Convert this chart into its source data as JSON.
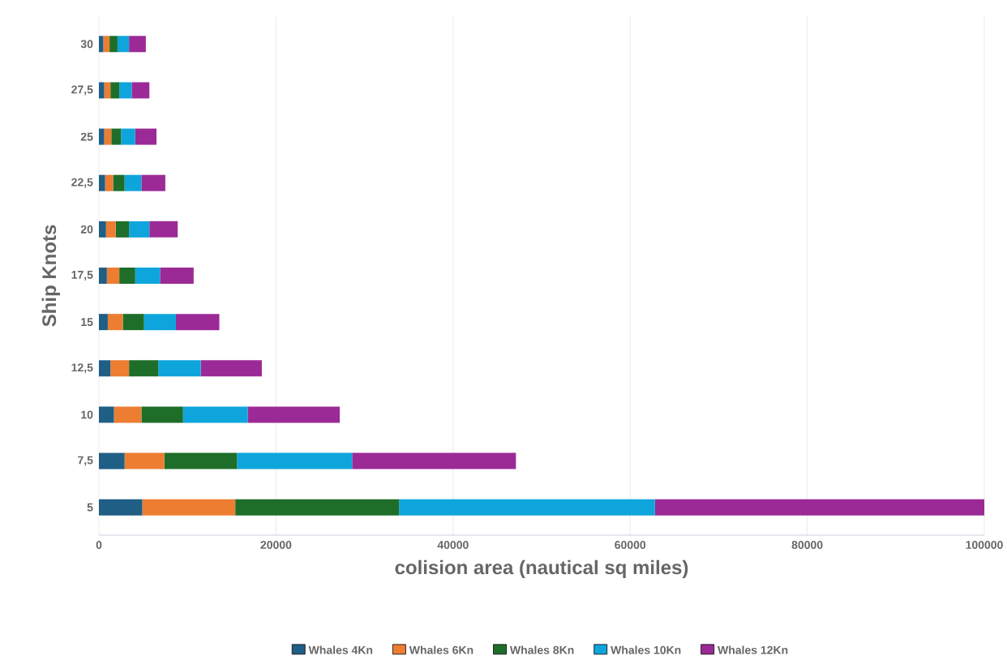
{
  "chart_data": {
    "type": "bar",
    "orientation": "horizontal",
    "stacked": true,
    "xlabel": "colision area (nautical sq miles)",
    "ylabel": "Ship Knots",
    "categories": [
      "30",
      "27,5",
      "25",
      "22,5",
      "20",
      "17,5",
      "15",
      "12,5",
      "10",
      "7,5",
      "5"
    ],
    "series": [
      {
        "name": "Whales 4Kn",
        "color": "#1f5f86",
        "values": [
          500,
          600,
          600,
          700,
          800,
          900,
          1000,
          1300,
          1700,
          2900,
          4900
        ]
      },
      {
        "name": "Whales 6Kn",
        "color": "#ed7d31",
        "values": [
          700,
          700,
          800,
          900,
          1100,
          1400,
          1700,
          2100,
          3100,
          4500,
          10500
        ]
      },
      {
        "name": "Whales 8Kn",
        "color": "#1e6e2a",
        "values": [
          900,
          1000,
          1100,
          1300,
          1500,
          1800,
          2400,
          3300,
          4700,
          8200,
          18500
        ]
      },
      {
        "name": "Whales 10Kn",
        "color": "#0ea5dc",
        "values": [
          1300,
          1400,
          1600,
          1900,
          2300,
          2800,
          3600,
          4800,
          7300,
          13000,
          28900
        ]
      },
      {
        "name": "Whales 12Kn",
        "color": "#9b2a96",
        "values": [
          1900,
          2000,
          2400,
          2700,
          3200,
          3800,
          4900,
          6900,
          10400,
          18500,
          37200
        ]
      }
    ],
    "xlim": [
      0,
      100000
    ],
    "xticks": [
      0,
      20000,
      40000,
      60000,
      80000,
      100000
    ],
    "grid": "x",
    "legend": "bottom"
  }
}
